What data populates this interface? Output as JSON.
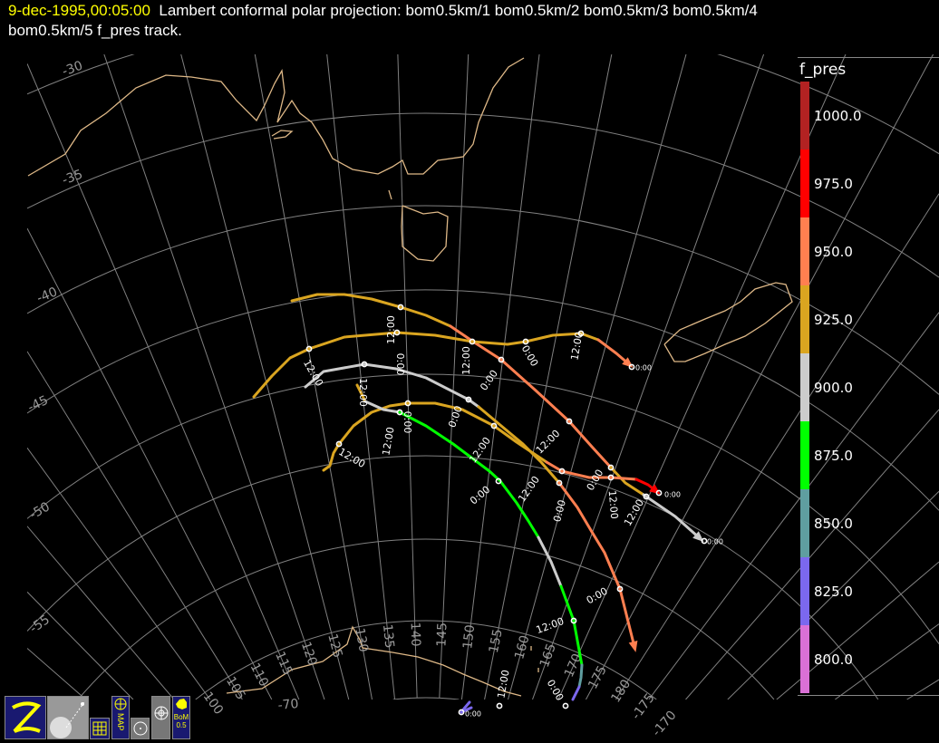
{
  "header": {
    "timestamp": "9-dec-1995,00:05:00",
    "title_line1": "Lambert conformal polar projection:  bom0.5km/1 bom0.5km/2 bom0.5km/3 bom0.5km/4",
    "title_line2": "bom0.5km/5 f_pres track."
  },
  "colorbar": {
    "title": "f_pres",
    "entries": [
      {
        "label": "1000.0",
        "color": "#b22222"
      },
      {
        "label": "975.0",
        "color": "#ff0000"
      },
      {
        "label": "950.0",
        "color": "#ff7f50"
      },
      {
        "label": "925.0",
        "color": "#daa520"
      },
      {
        "label": "900.0",
        "color": "#cccccc"
      },
      {
        "label": "875.0",
        "color": "#00ff00"
      },
      {
        "label": "850.0",
        "color": "#5f9ea0"
      },
      {
        "label": "825.0",
        "color": "#7b68ee"
      },
      {
        "label": "800.0",
        "color": "#da70d6"
      }
    ]
  },
  "map": {
    "projection": "Lambert conformal polar",
    "coastline_color": "#deb887",
    "grid_color": "#808080",
    "latitude_labels": [
      "-30",
      "-35",
      "-40",
      "-45",
      "-50",
      "-55",
      "-70"
    ],
    "longitude_labels": [
      "100",
      "105",
      "110",
      "115",
      "120",
      "125",
      "130",
      "135",
      "140",
      "145",
      "150",
      "155",
      "160",
      "165",
      "170",
      "175",
      "180",
      "-175",
      "-170"
    ],
    "track_time_labels": [
      "12:00",
      "0:00",
      "12:00",
      "12:00",
      "12:00",
      "0:00",
      "0:00",
      "12:00",
      "0:00",
      "0:00",
      "12:00",
      "12:00",
      "12:00",
      "12:00",
      "0:00",
      "12:00",
      "0:00",
      "0:00",
      "12:00",
      "12:00",
      "0:00",
      "12:00",
      "12:00",
      "0:00"
    ],
    "track_end_labels": [
      "0:00",
      "0:00",
      "0:00",
      "0:00"
    ]
  },
  "toolbar": {
    "map_label": "MAP",
    "bom_label": "BoM",
    "bom_sub": "0.5"
  }
}
